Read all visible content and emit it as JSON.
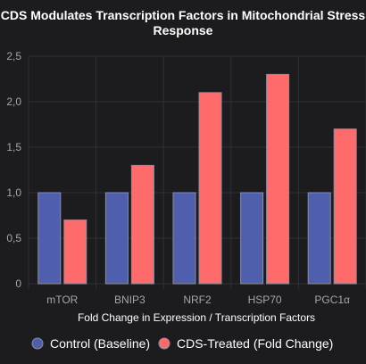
{
  "chart_data": {
    "type": "bar",
    "title": "CDS Modulates Transcription Factors in Mitochondrial Stress Response",
    "title_lines": [
      "CDS Modulates Transcription Factors in Mitochondrial Stress",
      "Response"
    ],
    "xlabel": "Fold Change in Expression / Transcription Factors",
    "ylabel": "",
    "categories": [
      "mTOR",
      "BNIP3",
      "NRF2",
      "HSP70",
      "PGC1α"
    ],
    "series": [
      {
        "name": "Control (Baseline)",
        "color": "#4f5fae",
        "values": [
          1.0,
          1.0,
          1.0,
          1.0,
          1.0
        ]
      },
      {
        "name": "CDS-Treated (Fold Change)",
        "color": "#ff6b6b",
        "values": [
          0.7,
          1.3,
          2.1,
          2.3,
          1.7
        ]
      }
    ],
    "ylim": [
      0,
      2.5
    ],
    "y_ticks": [
      "0",
      "0,5",
      "1,0",
      "1,5",
      "2,0",
      "2,5"
    ],
    "grid": true,
    "legend_position": "bottom"
  },
  "colors": {
    "background": "#1c1c1f",
    "grid": "#2f3034",
    "tick_text": "#a6a6a6",
    "bar_border": "#8a8fa0"
  }
}
